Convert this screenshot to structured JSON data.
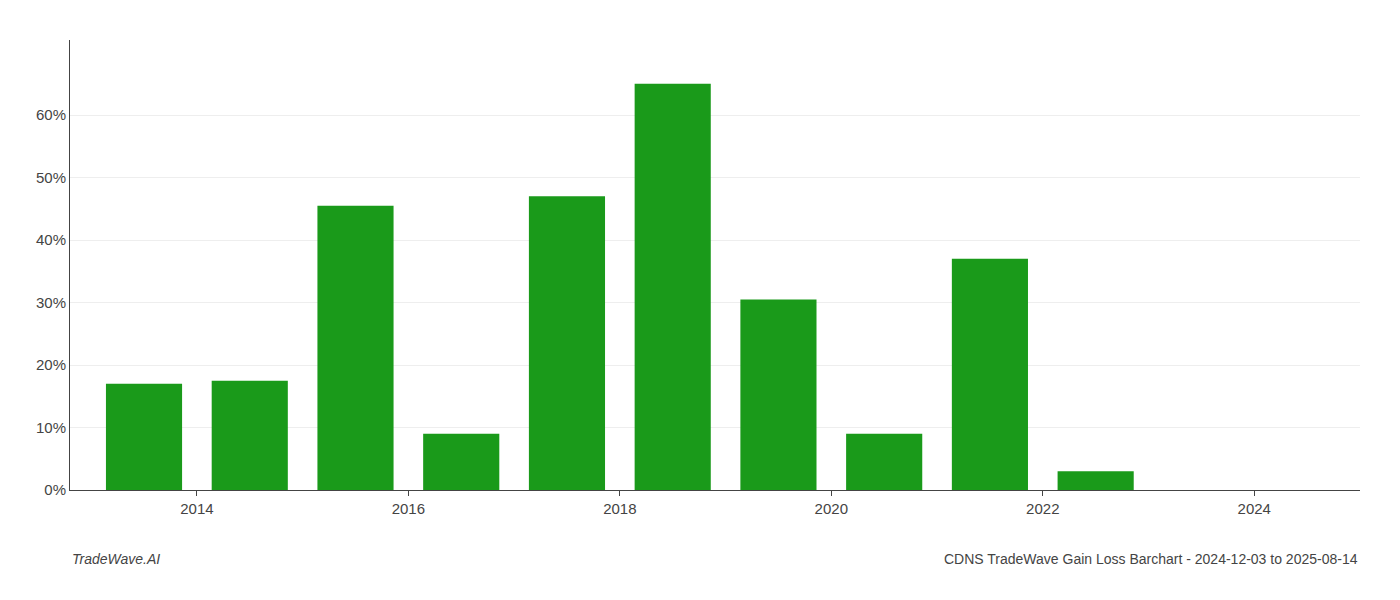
{
  "chart_data": {
    "type": "bar",
    "x": [
      2013.5,
      2014.5,
      2015.5,
      2016.5,
      2017.5,
      2018.5,
      2019.5,
      2020.5,
      2021.5,
      2022.5,
      2023.5
    ],
    "values": [
      0.17,
      0.175,
      0.455,
      0.09,
      0.47,
      0.65,
      0.305,
      0.09,
      0.37,
      0.03,
      0.0
    ],
    "color": "#1a9a1a",
    "xlim": [
      2012.8,
      2025.0
    ],
    "xticks": [
      2014,
      2016,
      2018,
      2020,
      2022,
      2024
    ],
    "ylim": [
      0,
      0.72
    ],
    "yticks": [
      {
        "value": 0.0,
        "label": "0%"
      },
      {
        "value": 0.1,
        "label": "10%"
      },
      {
        "value": 0.2,
        "label": "20%"
      },
      {
        "value": 0.3,
        "label": "30%"
      },
      {
        "value": 0.4,
        "label": "40%"
      },
      {
        "value": 0.5,
        "label": "50%"
      },
      {
        "value": 0.6,
        "label": "60%"
      }
    ],
    "grid": true,
    "annotations": [
      "TradeWave.AI",
      "CDNS TradeWave Gain Loss Barchart - 2024-12-03 to 2025-08-14"
    ]
  }
}
